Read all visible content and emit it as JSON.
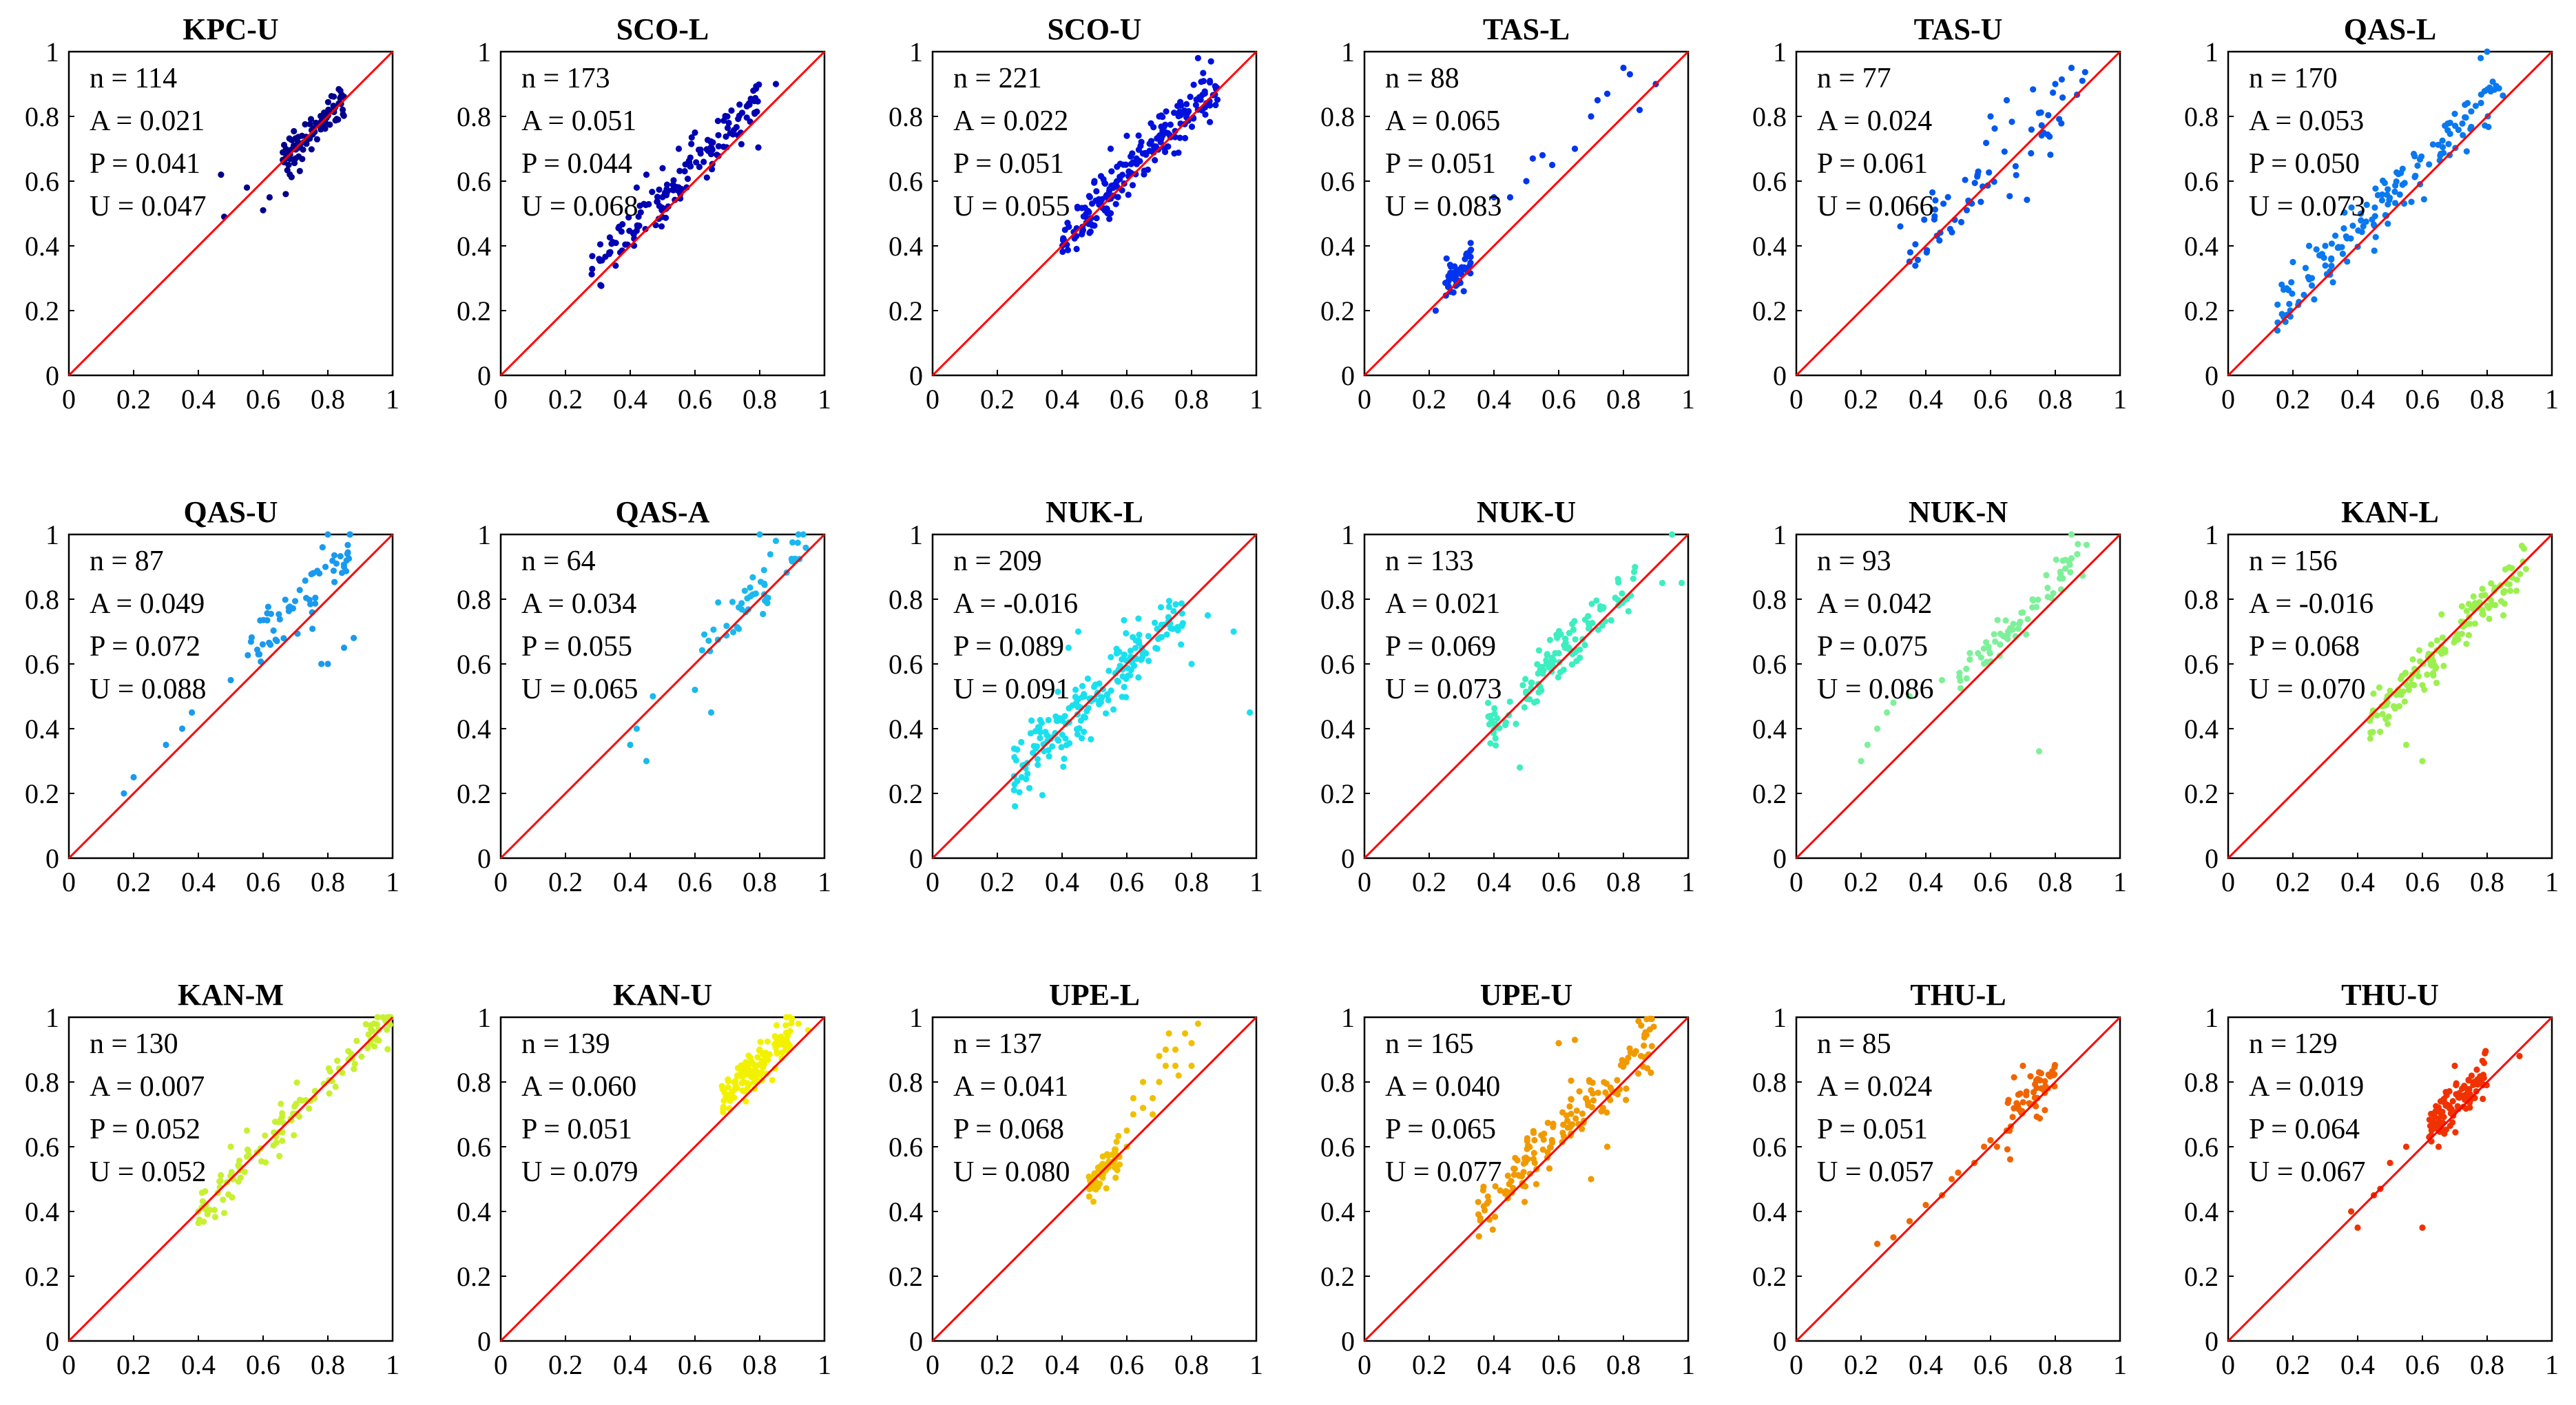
{
  "chart_data": [
    {
      "type": "scatter",
      "title": "KPC-U",
      "color": "#00008b",
      "xlim": [
        0,
        1
      ],
      "ylim": [
        0,
        1
      ],
      "ticks": [
        0,
        0.2,
        0.4,
        0.6,
        0.8,
        1
      ],
      "tick_labels": [
        "0",
        "0.2",
        "0.4",
        "0.6",
        "0.8",
        "1"
      ],
      "stats": [
        "n = 114",
        "A = 0.021",
        "P = 0.041",
        "U = 0.047"
      ],
      "cluster": {
        "n": 90,
        "xr": [
          0.66,
          0.85
        ],
        "spread": 0.03,
        "offset": 0.0
      },
      "extra": [
        [
          0.47,
          0.62
        ],
        [
          0.48,
          0.49
        ],
        [
          0.55,
          0.58
        ],
        [
          0.6,
          0.51
        ],
        [
          0.62,
          0.55
        ],
        [
          0.67,
          0.56
        ],
        [
          0.7,
          0.67
        ],
        [
          0.72,
          0.74
        ]
      ]
    },
    {
      "type": "scatter",
      "title": "SCO-L",
      "color": "#0000b3",
      "xlim": [
        0,
        1
      ],
      "ylim": [
        0,
        1
      ],
      "ticks": [
        0,
        0.2,
        0.4,
        0.6,
        0.8,
        1
      ],
      "tick_labels": [
        "0",
        "0.2",
        "0.4",
        "0.6",
        "0.8",
        "1"
      ],
      "stats": [
        "n = 173",
        "A = 0.051",
        "P = 0.044",
        "U = 0.068"
      ],
      "cluster": {
        "n": 150,
        "xr": [
          0.28,
          0.8
        ],
        "spread": 0.04,
        "offset": 0.05
      },
      "extra": [
        [
          0.45,
          0.62
        ],
        [
          0.5,
          0.64
        ],
        [
          0.55,
          0.7
        ],
        [
          0.6,
          0.75
        ],
        [
          0.65,
          0.72
        ],
        [
          0.7,
          0.8
        ],
        [
          0.85,
          0.9
        ],
        [
          0.42,
          0.58
        ]
      ]
    },
    {
      "type": "scatter",
      "title": "SCO-U",
      "color": "#0010dd",
      "xlim": [
        0,
        1
      ],
      "ylim": [
        0,
        1
      ],
      "ticks": [
        0,
        0.2,
        0.4,
        0.6,
        0.8,
        1
      ],
      "tick_labels": [
        "0",
        "0.2",
        "0.4",
        "0.6",
        "0.8",
        "1"
      ],
      "stats": [
        "n = 221",
        "A = 0.022",
        "P = 0.051",
        "U = 0.055"
      ],
      "cluster": {
        "n": 200,
        "xr": [
          0.4,
          0.88
        ],
        "spread": 0.04,
        "offset": 0.02
      },
      "extra": [
        [
          0.55,
          0.7
        ],
        [
          0.6,
          0.74
        ],
        [
          0.7,
          0.8
        ],
        [
          0.82,
          0.98
        ],
        [
          0.86,
          0.97
        ],
        [
          0.5,
          0.6
        ]
      ]
    },
    {
      "type": "scatter",
      "title": "TAS-L",
      "color": "#0033ee",
      "xlim": [
        0,
        1
      ],
      "ylim": [
        0,
        1
      ],
      "ticks": [
        0,
        0.2,
        0.4,
        0.6,
        0.8,
        1
      ],
      "tick_labels": [
        "0",
        "0.2",
        "0.4",
        "0.6",
        "0.8",
        "1"
      ],
      "stats": [
        "n = 88",
        "A = 0.065",
        "P = 0.051",
        "U = 0.083"
      ],
      "cluster": {
        "n": 45,
        "xr": [
          0.25,
          0.33
        ],
        "spread": 0.03,
        "offset": 0.03
      },
      "extra": [
        [
          0.22,
          0.2
        ],
        [
          0.4,
          0.55
        ],
        [
          0.45,
          0.55
        ],
        [
          0.5,
          0.6
        ],
        [
          0.52,
          0.67
        ],
        [
          0.55,
          0.68
        ],
        [
          0.58,
          0.65
        ],
        [
          0.65,
          0.7
        ],
        [
          0.7,
          0.8
        ],
        [
          0.72,
          0.85
        ],
        [
          0.75,
          0.87
        ],
        [
          0.8,
          0.95
        ],
        [
          0.82,
          0.93
        ],
        [
          0.85,
          0.82
        ],
        [
          0.9,
          0.9
        ]
      ]
    },
    {
      "type": "scatter",
      "title": "TAS-U",
      "color": "#0057ee",
      "xlim": [
        0,
        1
      ],
      "ylim": [
        0,
        1
      ],
      "ticks": [
        0,
        0.2,
        0.4,
        0.6,
        0.8,
        1
      ],
      "tick_labels": [
        "0",
        "0.2",
        "0.4",
        "0.6",
        "0.8",
        "1"
      ],
      "stats": [
        "n = 77",
        "A = 0.024",
        "P = 0.061",
        "U = 0.066"
      ],
      "cluster": {
        "n": 65,
        "xr": [
          0.3,
          0.9
        ],
        "spread": 0.06,
        "offset": 0.03
      },
      "extra": [
        [
          0.6,
          0.8
        ],
        [
          0.65,
          0.85
        ],
        [
          0.8,
          0.9
        ],
        [
          0.85,
          0.95
        ]
      ]
    },
    {
      "type": "scatter",
      "title": "QAS-L",
      "color": "#0a78ee",
      "xlim": [
        0,
        1
      ],
      "ylim": [
        0,
        1
      ],
      "ticks": [
        0,
        0.2,
        0.4,
        0.6,
        0.8,
        1
      ],
      "tick_labels": [
        "0",
        "0.2",
        "0.4",
        "0.6",
        "0.8",
        "1"
      ],
      "stats": [
        "n = 170",
        "A = 0.053",
        "P = 0.050",
        "U = 0.073"
      ],
      "cluster": {
        "n": 150,
        "xr": [
          0.15,
          0.85
        ],
        "spread": 0.04,
        "offset": 0.05
      },
      "extra": [
        [
          0.2,
          0.35
        ],
        [
          0.25,
          0.4
        ],
        [
          0.3,
          0.4
        ],
        [
          0.8,
          1.0
        ],
        [
          0.78,
          0.98
        ]
      ]
    },
    {
      "type": "scatter",
      "title": "QAS-U",
      "color": "#1a9aee",
      "xlim": [
        0,
        1
      ],
      "ylim": [
        0,
        1
      ],
      "ticks": [
        0,
        0.2,
        0.4,
        0.6,
        0.8,
        1
      ],
      "tick_labels": [
        "0",
        "0.2",
        "0.4",
        "0.6",
        "0.8",
        "1"
      ],
      "stats": [
        "n = 87",
        "A = 0.049",
        "P = 0.072",
        "U = 0.088"
      ],
      "cluster": {
        "n": 60,
        "xr": [
          0.55,
          0.88
        ],
        "spread": 0.05,
        "offset": 0.08
      },
      "extra": [
        [
          0.17,
          0.2
        ],
        [
          0.2,
          0.25
        ],
        [
          0.3,
          0.35
        ],
        [
          0.35,
          0.4
        ],
        [
          0.38,
          0.45
        ],
        [
          0.5,
          0.55
        ],
        [
          0.78,
          0.6
        ],
        [
          0.8,
          0.6
        ],
        [
          0.85,
          0.65
        ],
        [
          0.88,
          0.68
        ],
        [
          0.8,
          1.0
        ],
        [
          0.85,
          0.9
        ]
      ]
    },
    {
      "type": "scatter",
      "title": "QAS-A",
      "color": "#1ab8ee",
      "xlim": [
        0,
        1
      ],
      "ylim": [
        0,
        1
      ],
      "ticks": [
        0,
        0.2,
        0.4,
        0.6,
        0.8,
        1
      ],
      "tick_labels": [
        "0",
        "0.2",
        "0.4",
        "0.6",
        "0.8",
        "1"
      ],
      "stats": [
        "n = 64",
        "A = 0.034",
        "P = 0.055",
        "U = 0.065"
      ],
      "cluster": {
        "n": 45,
        "xr": [
          0.62,
          0.95
        ],
        "spread": 0.04,
        "offset": 0.03
      },
      "extra": [
        [
          0.4,
          0.35
        ],
        [
          0.42,
          0.4
        ],
        [
          0.45,
          0.3
        ],
        [
          0.47,
          0.5
        ],
        [
          0.6,
          0.52
        ],
        [
          0.65,
          0.45
        ],
        [
          0.8,
          1.0
        ],
        [
          0.85,
          0.98
        ]
      ]
    },
    {
      "type": "scatter",
      "title": "NUK-L",
      "color": "#1ae0ee",
      "xlim": [
        0,
        1
      ],
      "ylim": [
        0,
        1
      ],
      "ticks": [
        0,
        0.2,
        0.4,
        0.6,
        0.8,
        1
      ],
      "tick_labels": [
        "0",
        "0.2",
        "0.4",
        "0.6",
        "0.8",
        "1"
      ],
      "stats": [
        "n = 209",
        "A = -0.016",
        "P = 0.089",
        "U = 0.091"
      ],
      "cluster": {
        "n": 190,
        "xr": [
          0.25,
          0.78
        ],
        "spread": 0.05,
        "offset": 0.0
      },
      "extra": [
        [
          0.42,
          0.65
        ],
        [
          0.45,
          0.7
        ],
        [
          0.85,
          0.75
        ],
        [
          0.93,
          0.7
        ],
        [
          0.98,
          0.45
        ],
        [
          0.8,
          0.6
        ]
      ]
    },
    {
      "type": "scatter",
      "title": "NUK-U",
      "color": "#3ceec0",
      "xlim": [
        0,
        1
      ],
      "ylim": [
        0,
        1
      ],
      "ticks": [
        0,
        0.2,
        0.4,
        0.6,
        0.8,
        1
      ],
      "tick_labels": [
        "0",
        "0.2",
        "0.4",
        "0.6",
        "0.8",
        "1"
      ],
      "stats": [
        "n = 133",
        "A = 0.021",
        "P = 0.069",
        "U = 0.073"
      ],
      "cluster": {
        "n": 120,
        "xr": [
          0.38,
          0.85
        ],
        "spread": 0.04,
        "offset": 0.02
      },
      "extra": [
        [
          0.48,
          0.28
        ],
        [
          0.92,
          0.85
        ],
        [
          0.95,
          1.0
        ],
        [
          0.98,
          0.85
        ]
      ]
    },
    {
      "type": "scatter",
      "title": "NUK-N",
      "color": "#7ef09a",
      "xlim": [
        0,
        1
      ],
      "ylim": [
        0,
        1
      ],
      "ticks": [
        0,
        0.2,
        0.4,
        0.6,
        0.8,
        1
      ],
      "tick_labels": [
        "0",
        "0.2",
        "0.4",
        "0.6",
        "0.8",
        "1"
      ],
      "stats": [
        "n = 93",
        "A = 0.042",
        "P = 0.075",
        "U = 0.086"
      ],
      "cluster": {
        "n": 70,
        "xr": [
          0.5,
          0.9
        ],
        "spread": 0.03,
        "offset": 0.05
      },
      "extra": [
        [
          0.2,
          0.3
        ],
        [
          0.22,
          0.35
        ],
        [
          0.25,
          0.4
        ],
        [
          0.28,
          0.45
        ],
        [
          0.3,
          0.48
        ],
        [
          0.35,
          0.5
        ],
        [
          0.45,
          0.55
        ],
        [
          0.75,
          0.33
        ],
        [
          0.85,
          1.0
        ]
      ]
    },
    {
      "type": "scatter",
      "title": "KAN-L",
      "color": "#9bf050",
      "xlim": [
        0,
        1
      ],
      "ylim": [
        0,
        1
      ],
      "ticks": [
        0,
        0.2,
        0.4,
        0.6,
        0.8,
        1
      ],
      "tick_labels": [
        "0",
        "0.2",
        "0.4",
        "0.6",
        "0.8",
        "1"
      ],
      "stats": [
        "n = 156",
        "A = -0.016",
        "P = 0.068",
        "U = 0.070"
      ],
      "cluster": {
        "n": 145,
        "xr": [
          0.42,
          0.92
        ],
        "spread": 0.035,
        "offset": -0.01
      },
      "extra": [
        [
          0.55,
          0.35
        ],
        [
          0.6,
          0.3
        ],
        [
          0.8,
          0.78
        ],
        [
          0.85,
          0.75
        ]
      ]
    },
    {
      "type": "scatter",
      "title": "KAN-M",
      "color": "#c8f032",
      "xlim": [
        0,
        1
      ],
      "ylim": [
        0,
        1
      ],
      "ticks": [
        0,
        0.2,
        0.4,
        0.6,
        0.8,
        1
      ],
      "tick_labels": [
        "0",
        "0.2",
        "0.4",
        "0.6",
        "0.8",
        "1"
      ],
      "stats": [
        "n = 130",
        "A = 0.007",
        "P = 0.052",
        "U = 0.052"
      ],
      "cluster": {
        "n": 120,
        "xr": [
          0.4,
          1.0
        ],
        "spread": 0.035,
        "offset": 0.01
      },
      "extra": [
        [
          0.4,
          0.4
        ],
        [
          0.5,
          0.6
        ],
        [
          0.55,
          0.65
        ]
      ]
    },
    {
      "type": "scatter",
      "title": "KAN-U",
      "color": "#f2f200",
      "xlim": [
        0,
        1
      ],
      "ylim": [
        0,
        1
      ],
      "ticks": [
        0,
        0.2,
        0.4,
        0.6,
        0.8,
        1
      ],
      "tick_labels": [
        "0",
        "0.2",
        "0.4",
        "0.6",
        "0.8",
        "1"
      ],
      "stats": [
        "n = 139",
        "A = 0.060",
        "P = 0.051",
        "U = 0.079"
      ],
      "cluster": {
        "n": 135,
        "xr": [
          0.68,
          0.9
        ],
        "spread": 0.035,
        "offset": 0.06
      },
      "extra": [
        [
          0.92,
          0.98
        ],
        [
          0.95,
          0.96
        ]
      ]
    },
    {
      "type": "scatter",
      "title": "UPE-L",
      "color": "#f0c000",
      "xlim": [
        0,
        1
      ],
      "ylim": [
        0,
        1
      ],
      "ticks": [
        0,
        0.2,
        0.4,
        0.6,
        0.8,
        1
      ],
      "tick_labels": [
        "0",
        "0.2",
        "0.4",
        "0.6",
        "0.8",
        "1"
      ],
      "stats": [
        "n = 137",
        "A = 0.041",
        "P = 0.068",
        "U = 0.080"
      ],
      "cluster": {
        "n": 60,
        "xr": [
          0.48,
          0.58
        ],
        "spread": 0.03,
        "offset": 0.0
      },
      "extra": [
        [
          0.6,
          0.65
        ],
        [
          0.62,
          0.7
        ],
        [
          0.65,
          0.72
        ],
        [
          0.68,
          0.75
        ],
        [
          0.7,
          0.8
        ],
        [
          0.72,
          0.85
        ],
        [
          0.75,
          0.9
        ],
        [
          0.78,
          0.95
        ],
        [
          0.8,
          0.92
        ],
        [
          0.82,
          0.98
        ],
        [
          0.65,
          0.8
        ],
        [
          0.7,
          0.88
        ],
        [
          0.72,
          0.9
        ],
        [
          0.75,
          0.85
        ],
        [
          0.6,
          0.6
        ],
        [
          0.68,
          0.7
        ],
        [
          0.62,
          0.75
        ],
        [
          0.76,
          0.82
        ],
        [
          0.8,
          0.85
        ],
        [
          0.73,
          0.95
        ]
      ]
    },
    {
      "type": "scatter",
      "title": "UPE-U",
      "color": "#f09a00",
      "xlim": [
        0,
        1
      ],
      "ylim": [
        0,
        1
      ],
      "ticks": [
        0,
        0.2,
        0.4,
        0.6,
        0.8,
        1
      ],
      "tick_labels": [
        "0",
        "0.2",
        "0.4",
        "0.6",
        "0.8",
        "1"
      ],
      "stats": [
        "n = 165",
        "A = 0.040",
        "P = 0.065",
        "U = 0.077"
      ],
      "cluster": {
        "n": 155,
        "xr": [
          0.35,
          0.9
        ],
        "spread": 0.045,
        "offset": 0.04
      },
      "extra": [
        [
          0.6,
          0.92
        ],
        [
          0.65,
          0.93
        ],
        [
          0.7,
          0.5
        ],
        [
          0.75,
          0.6
        ]
      ]
    },
    {
      "type": "scatter",
      "title": "THU-L",
      "color": "#f06400",
      "xlim": [
        0,
        1
      ],
      "ylim": [
        0,
        1
      ],
      "ticks": [
        0,
        0.2,
        0.4,
        0.6,
        0.8,
        1
      ],
      "tick_labels": [
        "0",
        "0.2",
        "0.4",
        "0.6",
        "0.8",
        "1"
      ],
      "stats": [
        "n = 85",
        "A = 0.024",
        "P = 0.051",
        "U = 0.057"
      ],
      "cluster": {
        "n": 55,
        "xr": [
          0.65,
          0.8
        ],
        "spread": 0.04,
        "offset": 0.02
      },
      "extra": [
        [
          0.25,
          0.3
        ],
        [
          0.3,
          0.32
        ],
        [
          0.35,
          0.37
        ],
        [
          0.4,
          0.42
        ],
        [
          0.45,
          0.45
        ],
        [
          0.48,
          0.5
        ],
        [
          0.5,
          0.52
        ],
        [
          0.55,
          0.55
        ],
        [
          0.58,
          0.6
        ],
        [
          0.6,
          0.62
        ],
        [
          0.62,
          0.6
        ],
        [
          0.65,
          0.65
        ],
        [
          0.7,
          0.85
        ],
        [
          0.75,
          0.83
        ]
      ]
    },
    {
      "type": "scatter",
      "title": "THU-U",
      "color": "#f03200",
      "xlim": [
        0,
        1
      ],
      "ylim": [
        0,
        1
      ],
      "ticks": [
        0,
        0.2,
        0.4,
        0.6,
        0.8,
        1
      ],
      "tick_labels": [
        "0",
        "0.2",
        "0.4",
        "0.6",
        "0.8",
        "1"
      ],
      "stats": [
        "n = 129",
        "A = 0.019",
        "P = 0.064",
        "U = 0.067"
      ],
      "cluster": {
        "n": 110,
        "xr": [
          0.62,
          0.8
        ],
        "spread": 0.035,
        "offset": 0.03
      },
      "extra": [
        [
          0.38,
          0.4
        ],
        [
          0.4,
          0.35
        ],
        [
          0.45,
          0.45
        ],
        [
          0.47,
          0.47
        ],
        [
          0.5,
          0.55
        ],
        [
          0.55,
          0.6
        ],
        [
          0.6,
          0.35
        ],
        [
          0.65,
          0.6
        ],
        [
          0.9,
          0.88
        ],
        [
          0.7,
          0.85
        ]
      ]
    }
  ]
}
